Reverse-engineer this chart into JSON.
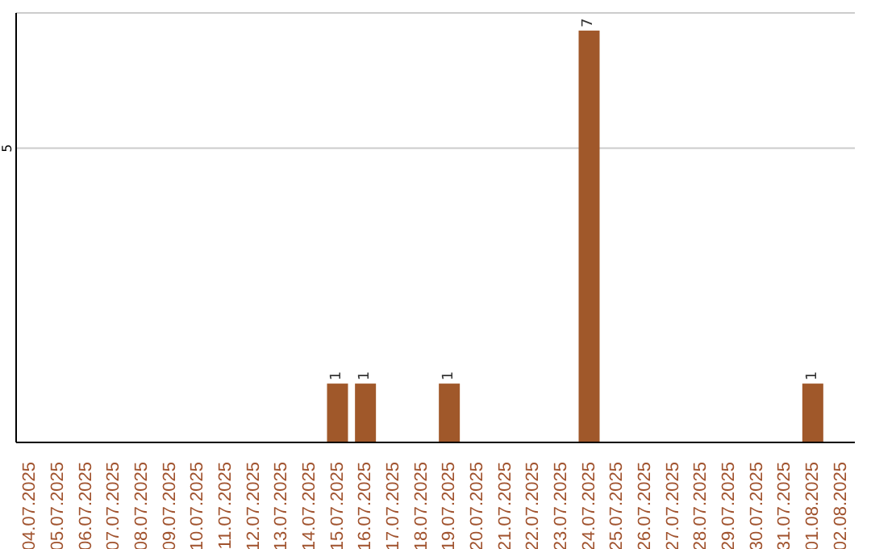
{
  "chart_data": {
    "type": "bar",
    "categories": [
      "04.07.2025",
      "05.07.2025",
      "06.07.2025",
      "07.07.2025",
      "08.07.2025",
      "09.07.2025",
      "10.07.2025",
      "11.07.2025",
      "12.07.2025",
      "13.07.2025",
      "14.07.2025",
      "15.07.2025",
      "16.07.2025",
      "17.07.2025",
      "18.07.2025",
      "19.07.2025",
      "20.07.2025",
      "21.07.2025",
      "22.07.2025",
      "23.07.2025",
      "24.07.2025",
      "25.07.2025",
      "26.07.2025",
      "27.07.2025",
      "28.07.2025",
      "29.07.2025",
      "30.07.2025",
      "31.07.2025",
      "01.08.2025",
      "02.08.2025"
    ],
    "values": [
      0,
      0,
      0,
      0,
      0,
      0,
      0,
      0,
      0,
      0,
      0,
      1,
      1,
      0,
      0,
      1,
      0,
      0,
      0,
      0,
      7,
      0,
      0,
      0,
      0,
      0,
      0,
      0,
      1,
      0
    ],
    "value_labels": [
      null,
      null,
      null,
      null,
      null,
      null,
      null,
      null,
      null,
      null,
      null,
      "1",
      "1",
      null,
      null,
      "1",
      null,
      null,
      null,
      null,
      "7",
      null,
      null,
      null,
      null,
      null,
      null,
      null,
      "1",
      null
    ],
    "color": "#a0582a",
    "ylim": [
      0,
      7.3
    ],
    "yticks": [
      5
    ],
    "grid": "y"
  }
}
